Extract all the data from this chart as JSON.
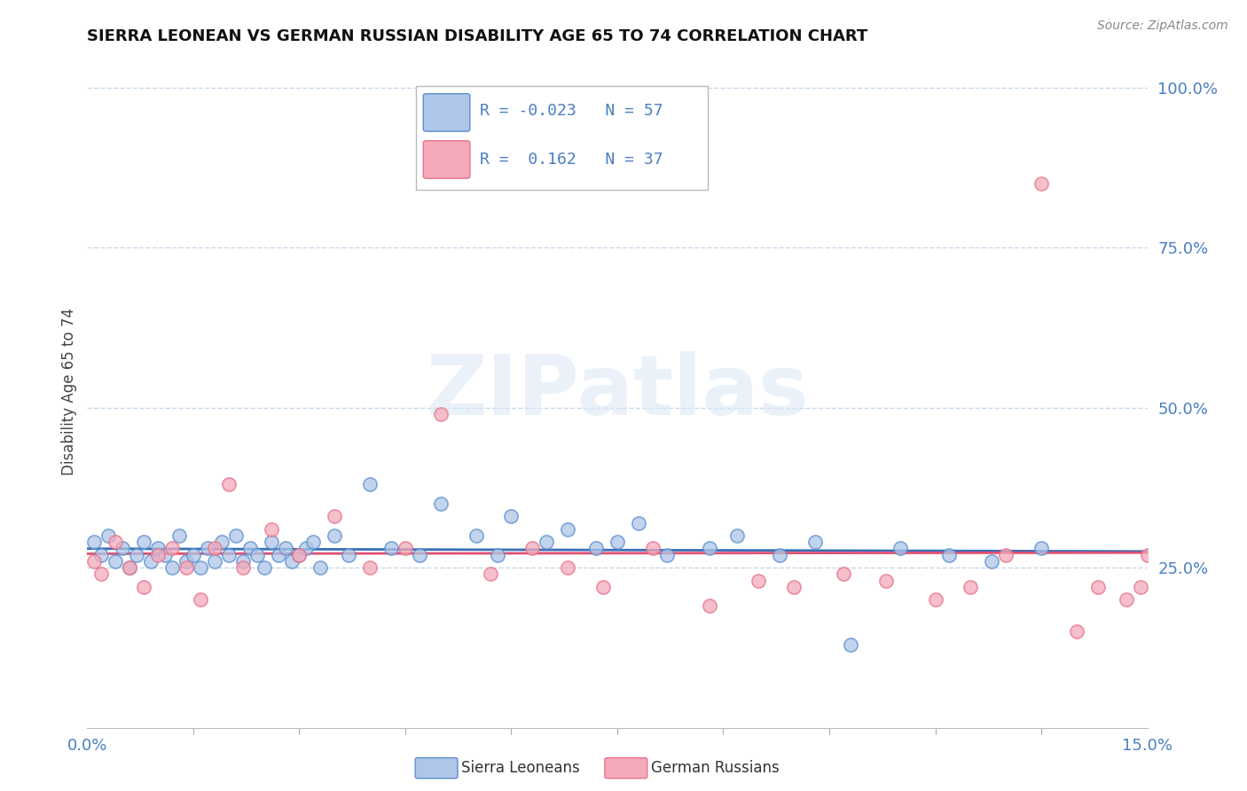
{
  "title": "SIERRA LEONEAN VS GERMAN RUSSIAN DISABILITY AGE 65 TO 74 CORRELATION CHART",
  "source_text": "Source: ZipAtlas.com",
  "ylabel": "Disability Age 65 to 74",
  "xlim": [
    0.0,
    0.15
  ],
  "ylim": [
    0.0,
    1.05
  ],
  "yticks_right": [
    0.25,
    0.5,
    0.75,
    1.0
  ],
  "ytick_labels_right": [
    "25.0%",
    "50.0%",
    "75.0%",
    "100.0%"
  ],
  "blue_R": -0.023,
  "blue_N": 57,
  "pink_R": 0.162,
  "pink_N": 37,
  "blue_face": "#aec6e8",
  "pink_face": "#f4aabb",
  "blue_edge": "#5b8fcf",
  "pink_edge": "#e8738a",
  "blue_line_color": "#3a6db5",
  "pink_line_color": "#e05070",
  "background_color": "#ffffff",
  "grid_color": "#c8d8ea",
  "watermark": "ZIPatlas",
  "sierra_x": [
    0.001,
    0.002,
    0.003,
    0.004,
    0.005,
    0.006,
    0.007,
    0.008,
    0.009,
    0.01,
    0.011,
    0.012,
    0.013,
    0.014,
    0.015,
    0.016,
    0.017,
    0.018,
    0.019,
    0.02,
    0.021,
    0.022,
    0.023,
    0.024,
    0.025,
    0.026,
    0.027,
    0.028,
    0.029,
    0.03,
    0.031,
    0.032,
    0.033,
    0.035,
    0.037,
    0.04,
    0.043,
    0.047,
    0.05,
    0.055,
    0.058,
    0.06,
    0.065,
    0.068,
    0.072,
    0.075,
    0.078,
    0.082,
    0.088,
    0.092,
    0.098,
    0.103,
    0.108,
    0.115,
    0.122,
    0.128,
    0.135
  ],
  "sierra_y": [
    0.29,
    0.27,
    0.3,
    0.26,
    0.28,
    0.25,
    0.27,
    0.29,
    0.26,
    0.28,
    0.27,
    0.25,
    0.3,
    0.26,
    0.27,
    0.25,
    0.28,
    0.26,
    0.29,
    0.27,
    0.3,
    0.26,
    0.28,
    0.27,
    0.25,
    0.29,
    0.27,
    0.28,
    0.26,
    0.27,
    0.28,
    0.29,
    0.25,
    0.3,
    0.27,
    0.38,
    0.28,
    0.27,
    0.35,
    0.3,
    0.27,
    0.33,
    0.29,
    0.31,
    0.28,
    0.29,
    0.32,
    0.27,
    0.28,
    0.3,
    0.27,
    0.29,
    0.13,
    0.28,
    0.27,
    0.26,
    0.28
  ],
  "german_x": [
    0.001,
    0.002,
    0.004,
    0.006,
    0.008,
    0.01,
    0.012,
    0.014,
    0.016,
    0.018,
    0.02,
    0.022,
    0.026,
    0.03,
    0.035,
    0.04,
    0.045,
    0.05,
    0.057,
    0.063,
    0.068,
    0.073,
    0.08,
    0.088,
    0.095,
    0.1,
    0.107,
    0.113,
    0.12,
    0.125,
    0.13,
    0.135,
    0.14,
    0.143,
    0.147,
    0.149,
    0.15
  ],
  "german_y": [
    0.26,
    0.24,
    0.29,
    0.25,
    0.22,
    0.27,
    0.28,
    0.25,
    0.2,
    0.28,
    0.38,
    0.25,
    0.31,
    0.27,
    0.33,
    0.25,
    0.28,
    0.49,
    0.24,
    0.28,
    0.25,
    0.22,
    0.28,
    0.19,
    0.23,
    0.22,
    0.24,
    0.23,
    0.2,
    0.22,
    0.27,
    0.85,
    0.15,
    0.22,
    0.2,
    0.22,
    0.27
  ]
}
